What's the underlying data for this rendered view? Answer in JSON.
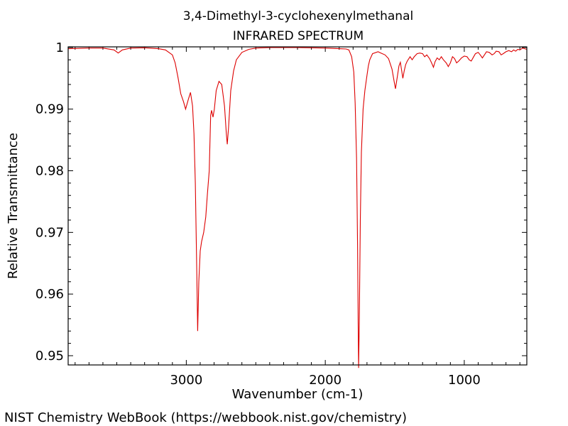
{
  "chart_data": {
    "type": "line",
    "title": "3,4-Dimethyl-3-cyclohexenylmethanal",
    "subtitle": "INFRARED SPECTRUM",
    "xlabel": "Wavenumber (cm-1)",
    "ylabel": "Relative Transmittance",
    "xlim": [
      3850,
      550
    ],
    "ylim": [
      0.9485,
      1.0001
    ],
    "x_ticks": [
      3000,
      2000,
      1000
    ],
    "x_tick_labels": [
      "3000",
      "2000",
      "1000"
    ],
    "y_ticks": [
      1.0,
      0.99,
      0.98,
      0.97,
      0.96,
      0.95
    ],
    "y_tick_labels": [
      "1",
      "0.99",
      "0.98",
      "0.97",
      "0.96",
      "0.95"
    ],
    "grid": false,
    "line_color": "#dd0000",
    "series": [
      {
        "points": [
          [
            3850,
            0.9998
          ],
          [
            3700,
            0.9999
          ],
          [
            3600,
            0.9999
          ],
          [
            3520,
            0.9996
          ],
          [
            3490,
            0.9991
          ],
          [
            3460,
            0.9996
          ],
          [
            3400,
            0.9999
          ],
          [
            3300,
            0.99995
          ],
          [
            3200,
            0.9998
          ],
          [
            3150,
            0.9996
          ],
          [
            3100,
            0.9988
          ],
          [
            3080,
            0.9975
          ],
          [
            3060,
            0.9952
          ],
          [
            3040,
            0.9925
          ],
          [
            3020,
            0.9912
          ],
          [
            3005,
            0.99
          ],
          [
            2985,
            0.9916
          ],
          [
            2970,
            0.9927
          ],
          [
            2955,
            0.9905
          ],
          [
            2945,
            0.986
          ],
          [
            2935,
            0.978
          ],
          [
            2925,
            0.964
          ],
          [
            2918,
            0.954
          ],
          [
            2910,
            0.962
          ],
          [
            2900,
            0.967
          ],
          [
            2890,
            0.9685
          ],
          [
            2875,
            0.97
          ],
          [
            2860,
            0.9725
          ],
          [
            2848,
            0.9762
          ],
          [
            2835,
            0.98
          ],
          [
            2825,
            0.989
          ],
          [
            2818,
            0.9898
          ],
          [
            2808,
            0.9887
          ],
          [
            2798,
            0.99
          ],
          [
            2785,
            0.993
          ],
          [
            2765,
            0.9945
          ],
          [
            2745,
            0.994
          ],
          [
            2725,
            0.9905
          ],
          [
            2712,
            0.986
          ],
          [
            2705,
            0.9843
          ],
          [
            2696,
            0.987
          ],
          [
            2680,
            0.993
          ],
          [
            2660,
            0.9962
          ],
          [
            2640,
            0.998
          ],
          [
            2600,
            0.9992
          ],
          [
            2550,
            0.9997
          ],
          [
            2500,
            0.9999
          ],
          [
            2400,
            1.0
          ],
          [
            2200,
            1.0
          ],
          [
            2000,
            0.9999
          ],
          [
            1900,
            0.9998
          ],
          [
            1850,
            0.99975
          ],
          [
            1830,
            0.9996
          ],
          [
            1810,
            0.9985
          ],
          [
            1795,
            0.996
          ],
          [
            1785,
            0.991
          ],
          [
            1775,
            0.982
          ],
          [
            1768,
            0.968
          ],
          [
            1762,
            0.952
          ],
          [
            1760,
            0.948
          ],
          [
            1755,
            0.956
          ],
          [
            1748,
            0.972
          ],
          [
            1740,
            0.983
          ],
          [
            1728,
            0.99
          ],
          [
            1715,
            0.993
          ],
          [
            1700,
            0.9955
          ],
          [
            1690,
            0.997
          ],
          [
            1680,
            0.998
          ],
          [
            1660,
            0.999
          ],
          [
            1620,
            0.9993
          ],
          [
            1600,
            0.9991
          ],
          [
            1570,
            0.9988
          ],
          [
            1545,
            0.9982
          ],
          [
            1520,
            0.9965
          ],
          [
            1505,
            0.9945
          ],
          [
            1495,
            0.9933
          ],
          [
            1485,
            0.9948
          ],
          [
            1470,
            0.997
          ],
          [
            1460,
            0.9976
          ],
          [
            1450,
            0.9962
          ],
          [
            1442,
            0.995
          ],
          [
            1432,
            0.9962
          ],
          [
            1422,
            0.9972
          ],
          [
            1410,
            0.9978
          ],
          [
            1390,
            0.9985
          ],
          [
            1375,
            0.998
          ],
          [
            1360,
            0.9985
          ],
          [
            1340,
            0.999
          ],
          [
            1320,
            0.9991
          ],
          [
            1300,
            0.999
          ],
          [
            1285,
            0.9985
          ],
          [
            1270,
            0.9988
          ],
          [
            1250,
            0.9982
          ],
          [
            1235,
            0.9975
          ],
          [
            1222,
            0.9968
          ],
          [
            1210,
            0.9977
          ],
          [
            1195,
            0.9983
          ],
          [
            1180,
            0.998
          ],
          [
            1165,
            0.9985
          ],
          [
            1150,
            0.998
          ],
          [
            1130,
            0.9975
          ],
          [
            1115,
            0.9969
          ],
          [
            1100,
            0.9975
          ],
          [
            1085,
            0.9985
          ],
          [
            1070,
            0.9982
          ],
          [
            1055,
            0.9975
          ],
          [
            1040,
            0.9978
          ],
          [
            1020,
            0.9983
          ],
          [
            1000,
            0.9986
          ],
          [
            980,
            0.9985
          ],
          [
            965,
            0.998
          ],
          [
            950,
            0.9978
          ],
          [
            935,
            0.9984
          ],
          [
            920,
            0.999
          ],
          [
            900,
            0.9992
          ],
          [
            885,
            0.9988
          ],
          [
            870,
            0.9983
          ],
          [
            855,
            0.9988
          ],
          [
            840,
            0.9993
          ],
          [
            820,
            0.9992
          ],
          [
            800,
            0.9988
          ],
          [
            785,
            0.999
          ],
          [
            770,
            0.9994
          ],
          [
            750,
            0.9993
          ],
          [
            735,
            0.9988
          ],
          [
            720,
            0.999
          ],
          [
            700,
            0.9993
          ],
          [
            680,
            0.9995
          ],
          [
            660,
            0.9993
          ],
          [
            645,
            0.9996
          ],
          [
            630,
            0.9994
          ],
          [
            615,
            0.9997
          ],
          [
            600,
            0.9996
          ],
          [
            580,
            0.9999
          ],
          [
            565,
            0.9998
          ],
          [
            550,
            0.9997
          ]
        ]
      }
    ]
  },
  "footer": {
    "source_text": "NIST Chemistry WebBook (https://webbook.nist.gov/chemistry)"
  }
}
